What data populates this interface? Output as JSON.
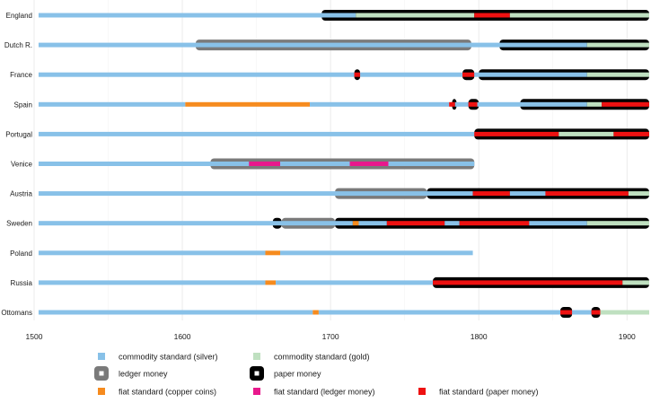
{
  "chart_data": {
    "type": "timeline",
    "title": "",
    "xlabel": "",
    "ylabel": "",
    "xlim": [
      1500,
      1915
    ],
    "grid": true,
    "x_ticks": [
      1500,
      1600,
      1700,
      1800,
      1900
    ],
    "x_tick_labels": [
      "1500",
      "1600",
      "1700",
      "1800",
      "1900"
    ],
    "categories": [
      "England",
      "Dutch R.",
      "France",
      "Spain",
      "Portugal",
      "Venice",
      "Austria",
      "Sweden",
      "Poland",
      "Russia",
      "Ottomans"
    ],
    "colors": {
      "silver": "#88c1e8",
      "gold": "#bfe0c0",
      "copper": "#f68b1e",
      "fiat_ledger": "#e8188c",
      "fiat_paper": "#ee1111",
      "ledger": "#7a7a7a",
      "paper": "#000000"
    },
    "legend": {
      "position": "bottom",
      "entries": [
        {
          "label": "commodity standard (silver)",
          "key": "silver",
          "style": "square"
        },
        {
          "label": "commodity standard (gold)",
          "key": "gold",
          "style": "square"
        },
        {
          "label": "ledger money",
          "key": "ledger",
          "style": "ring"
        },
        {
          "label": "paper money",
          "key": "paper",
          "style": "ring"
        },
        {
          "label": "fiat standard (copper coins)",
          "key": "copper",
          "style": "square"
        },
        {
          "label": "fiat standard (ledger money)",
          "key": "fiat_ledger",
          "style": "square"
        },
        {
          "label": "fiat standard (paper money)",
          "key": "fiat_paper",
          "style": "square"
        }
      ]
    },
    "series": [
      {
        "name": "England",
        "standards": [
          [
            "silver",
            1503,
            1717
          ],
          [
            "gold",
            1717,
            1797
          ],
          [
            "fiat_paper",
            1797,
            1821
          ],
          [
            "gold",
            1821,
            1915
          ]
        ],
        "money": [
          [
            "paper",
            1694,
            1915
          ]
        ]
      },
      {
        "name": "Dutch R.",
        "standards": [
          [
            "silver",
            1503,
            1873
          ],
          [
            "gold",
            1873,
            1915
          ]
        ],
        "money": [
          [
            "ledger",
            1609,
            1795
          ],
          [
            "paper",
            1814,
            1915
          ]
        ]
      },
      {
        "name": "France",
        "standards": [
          [
            "silver",
            1503,
            1716
          ],
          [
            "fiat_paper",
            1716,
            1720
          ],
          [
            "silver",
            1720,
            1789
          ],
          [
            "fiat_paper",
            1789,
            1797
          ],
          [
            "silver",
            1797,
            1873
          ],
          [
            "gold",
            1873,
            1915
          ]
        ],
        "money": [
          [
            "paper",
            1716,
            1720
          ],
          [
            "paper",
            1789,
            1797
          ],
          [
            "paper",
            1800,
            1915
          ]
        ]
      },
      {
        "name": "Spain",
        "standards": [
          [
            "silver",
            1503,
            1602
          ],
          [
            "copper",
            1602,
            1686
          ],
          [
            "silver",
            1686,
            1780
          ],
          [
            "fiat_paper",
            1780,
            1784
          ],
          [
            "silver",
            1784,
            1793
          ],
          [
            "fiat_paper",
            1793,
            1799
          ],
          [
            "silver",
            1799,
            1873
          ],
          [
            "gold",
            1873,
            1883
          ],
          [
            "fiat_paper",
            1883,
            1915
          ]
        ],
        "money": [
          [
            "paper",
            1782,
            1785
          ],
          [
            "paper",
            1793,
            1800
          ],
          [
            "paper",
            1828,
            1915
          ]
        ]
      },
      {
        "name": "Portugal",
        "standards": [
          [
            "silver",
            1503,
            1797
          ],
          [
            "fiat_paper",
            1797,
            1854
          ],
          [
            "gold",
            1854,
            1891
          ],
          [
            "fiat_paper",
            1891,
            1915
          ]
        ],
        "money": [
          [
            "paper",
            1797,
            1915
          ]
        ]
      },
      {
        "name": "Venice",
        "standards": [
          [
            "silver",
            1503,
            1645
          ],
          [
            "fiat_ledger",
            1645,
            1666
          ],
          [
            "silver",
            1666,
            1713
          ],
          [
            "fiat_ledger",
            1713,
            1739
          ],
          [
            "silver",
            1739,
            1797
          ]
        ],
        "money": [
          [
            "ledger",
            1619,
            1797
          ]
        ]
      },
      {
        "name": "Austria",
        "standards": [
          [
            "silver",
            1503,
            1796
          ],
          [
            "fiat_paper",
            1796,
            1821
          ],
          [
            "silver",
            1821,
            1845
          ],
          [
            "fiat_paper",
            1845,
            1901
          ],
          [
            "gold",
            1901,
            1915
          ]
        ],
        "money": [
          [
            "ledger",
            1703,
            1765
          ],
          [
            "paper",
            1765,
            1915
          ]
        ]
      },
      {
        "name": "Sweden",
        "standards": [
          [
            "silver",
            1503,
            1715
          ],
          [
            "copper",
            1715,
            1719
          ],
          [
            "silver",
            1719,
            1738
          ],
          [
            "fiat_paper",
            1738,
            1777
          ],
          [
            "silver",
            1777,
            1787
          ],
          [
            "fiat_paper",
            1787,
            1834
          ],
          [
            "silver",
            1834,
            1873
          ],
          [
            "gold",
            1873,
            1915
          ]
        ],
        "money": [
          [
            "paper",
            1661,
            1667
          ],
          [
            "ledger",
            1667,
            1703
          ],
          [
            "paper",
            1703,
            1915
          ]
        ]
      },
      {
        "name": "Poland",
        "standards": [
          [
            "silver",
            1503,
            1656
          ],
          [
            "copper",
            1656,
            1666
          ],
          [
            "silver",
            1666,
            1796
          ]
        ],
        "money": []
      },
      {
        "name": "Russia",
        "standards": [
          [
            "silver",
            1503,
            1656
          ],
          [
            "copper",
            1656,
            1663
          ],
          [
            "silver",
            1663,
            1769
          ],
          [
            "fiat_paper",
            1769,
            1897
          ],
          [
            "gold",
            1897,
            1915
          ]
        ],
        "money": [
          [
            "paper",
            1769,
            1915
          ]
        ]
      },
      {
        "name": "Ottomans",
        "standards": [
          [
            "silver",
            1503,
            1688
          ],
          [
            "copper",
            1688,
            1692
          ],
          [
            "silver",
            1692,
            1855
          ],
          [
            "fiat_paper",
            1855,
            1863
          ],
          [
            "silver",
            1863,
            1876
          ],
          [
            "fiat_paper",
            1876,
            1882
          ],
          [
            "gold",
            1882,
            1915
          ]
        ],
        "money": [
          [
            "paper",
            1855,
            1863
          ],
          [
            "paper",
            1876,
            1882
          ]
        ]
      }
    ]
  }
}
